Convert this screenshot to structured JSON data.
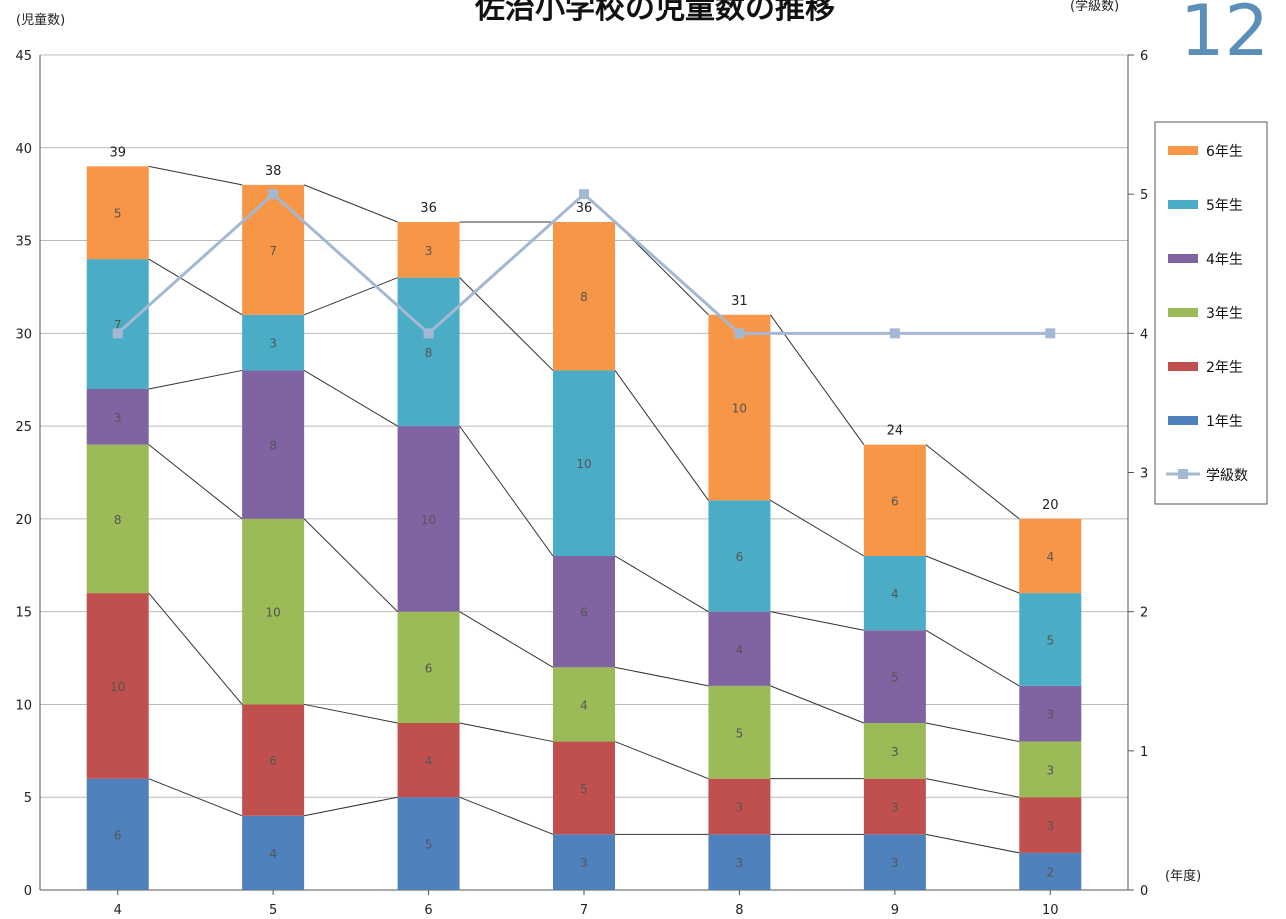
{
  "page_number": "12",
  "chart_data": {
    "type": "bar",
    "title": "佐治小学校の児童数の推移",
    "ylabel": "(児童数)",
    "y2label": "(学級数)",
    "xlabel": "(年度)",
    "ylim": [
      0,
      45
    ],
    "y2lim": [
      0,
      6
    ],
    "yticks": [
      0,
      5,
      10,
      15,
      20,
      25,
      30,
      35,
      40,
      45
    ],
    "y2ticks": [
      0,
      1,
      2,
      3,
      4,
      5,
      6
    ],
    "grid": true,
    "legend_position": "right",
    "categories": [
      "4",
      "5",
      "6",
      "7",
      "8",
      "9",
      "10"
    ],
    "series": [
      {
        "name": "1年生",
        "color": "#4f81bd",
        "values": [
          6,
          4,
          5,
          3,
          3,
          3,
          2
        ],
        "labels": [
          "6",
          "4",
          "5",
          "3",
          "3",
          "3",
          "2"
        ]
      },
      {
        "name": "2年生",
        "color": "#c0504d",
        "values": [
          10,
          6,
          4,
          5,
          3,
          3,
          3
        ],
        "labels": [
          "10",
          "6",
          "4",
          "5",
          "3",
          "3",
          "3"
        ]
      },
      {
        "name": "3年生",
        "color": "#9bbb59",
        "values": [
          8,
          10,
          6,
          4,
          5,
          3,
          3
        ],
        "labels": [
          "8",
          "10",
          "6",
          "4",
          "5",
          "3",
          "3"
        ]
      },
      {
        "name": "4年生",
        "color": "#8064a2",
        "values": [
          3,
          8,
          10,
          6,
          4,
          5,
          3
        ],
        "labels": [
          "3",
          "8",
          "10",
          "6",
          "4",
          "5",
          "3"
        ]
      },
      {
        "name": "5年生",
        "color": "#4bacc6",
        "values": [
          7,
          3,
          8,
          10,
          6,
          4,
          5
        ],
        "labels": [
          "7",
          "3",
          "8",
          "10",
          "6",
          "4",
          "5"
        ]
      },
      {
        "name": "6年生",
        "color": "#f79646",
        "values": [
          5,
          7,
          3,
          8,
          10,
          6,
          4
        ],
        "labels": [
          "5",
          "7",
          "3",
          "8",
          "10",
          "6",
          "4"
        ]
      }
    ],
    "totals": [
      "39",
      "38",
      "36",
      "36",
      "31",
      "24",
      "20"
    ],
    "line_series": {
      "name": "学級数",
      "color": "#a5b8d3",
      "axis": "right",
      "values": [
        4,
        5,
        4,
        5,
        4,
        4,
        4
      ]
    }
  }
}
